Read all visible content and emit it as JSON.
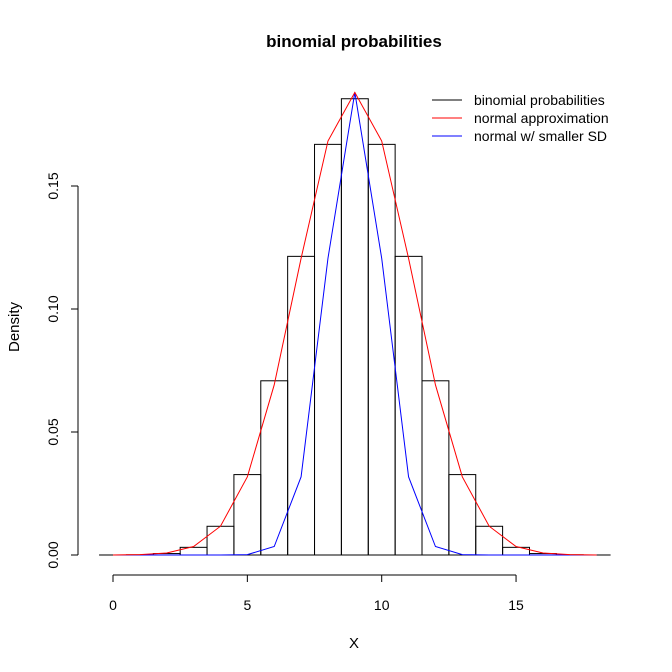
{
  "chart_data": {
    "type": "bar",
    "title": "binomial probabilities",
    "xlabel": "X",
    "ylabel": "Density",
    "xlim": [
      -0.5,
      18.5
    ],
    "ylim": [
      0,
      0.19
    ],
    "xticks": [
      0,
      5,
      10,
      15
    ],
    "xtick_labels": [
      "0",
      "5",
      "10",
      "15"
    ],
    "yticks": [
      0,
      0.05,
      0.1,
      0.15
    ],
    "ytick_labels": [
      "0.00",
      "0.05",
      "0.10",
      "0.15"
    ],
    "grid": false,
    "legend_position": "top-right",
    "bars": {
      "name": "binomial probabilities",
      "color": "#000000",
      "x": [
        0,
        1,
        2,
        3,
        4,
        5,
        6,
        7,
        8,
        9,
        10,
        11,
        12,
        13,
        14,
        15,
        16,
        17,
        18
      ],
      "values": [
        3.8e-06,
        6.87e-05,
        0.000584,
        0.003113,
        0.011673,
        0.032684,
        0.070816,
        0.121399,
        0.166924,
        0.185471,
        0.166924,
        0.121399,
        0.070816,
        0.032684,
        0.011673,
        0.003113,
        0.000584,
        6.87e-05,
        3.8e-06
      ]
    },
    "series": [
      {
        "name": "normal w/ smaller SD",
        "color": "#0000ff",
        "x": [
          0,
          1,
          2,
          3,
          4,
          5,
          6,
          7,
          8,
          9,
          10,
          11,
          12,
          13,
          14,
          15,
          16,
          17,
          18
        ],
        "values": [
          0,
          0,
          0,
          0,
          2.8e-06,
          0.000153,
          0.003445,
          0.03178,
          0.12059,
          0.18806,
          0.12059,
          0.03178,
          0.003445,
          0.000153,
          2.8e-06,
          0,
          0,
          0,
          0
        ]
      },
      {
        "name": "normal approximation",
        "color": "#ff0000",
        "x": [
          0,
          1,
          2,
          3,
          4,
          5,
          6,
          7,
          8,
          9,
          10,
          11,
          12,
          13,
          14,
          15,
          16,
          17,
          18
        ],
        "values": [
          2.32e-05,
          0.000153,
          0.000813,
          0.003445,
          0.0117,
          0.03178,
          0.06918,
          0.12059,
          0.16828,
          0.18806,
          0.16828,
          0.12059,
          0.06918,
          0.03178,
          0.0117,
          0.003445,
          0.000813,
          0.000153,
          2.32e-05
        ]
      }
    ],
    "legend": [
      {
        "label": "binomial probabilities",
        "color": "#000000"
      },
      {
        "label": "normal approximation",
        "color": "#ff0000"
      },
      {
        "label": "normal w/ smaller SD",
        "color": "#0000ff"
      }
    ]
  }
}
